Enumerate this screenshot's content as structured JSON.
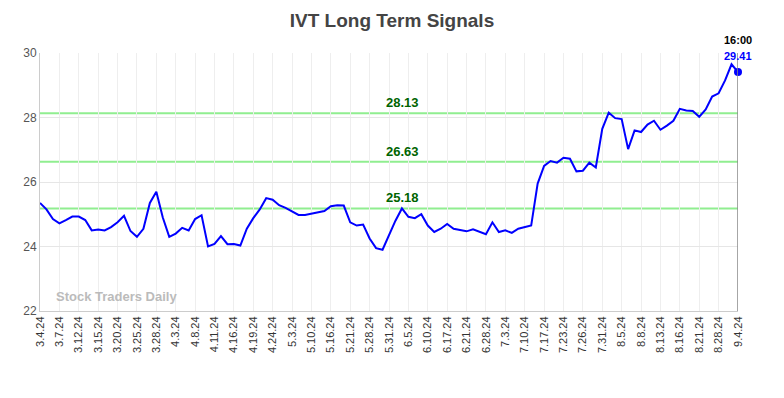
{
  "chart_data": {
    "type": "line",
    "title": "IVT Long Term Signals",
    "categories": [
      "3.4.24",
      null,
      null,
      "3.7.24",
      null,
      null,
      "3.12.24",
      null,
      null,
      "3.15.24",
      null,
      null,
      "3.20.24",
      null,
      null,
      "3.25.24",
      null,
      null,
      "3.28.24",
      null,
      null,
      "4.3.24",
      null,
      null,
      "4.8.24",
      null,
      null,
      "4.11.24",
      null,
      null,
      "4.16.24",
      null,
      null,
      "4.19.24",
      null,
      null,
      "4.24.24",
      null,
      null,
      "5.3.24",
      null,
      null,
      "5.10.24",
      null,
      null,
      "5.16.24",
      null,
      null,
      "5.21.24",
      null,
      null,
      "5.28.24",
      null,
      null,
      "5.31.24",
      null,
      null,
      "6.5.24",
      null,
      null,
      "6.10.24",
      null,
      null,
      "6.17.24",
      null,
      null,
      "6.21.24",
      null,
      null,
      "6.28.24",
      null,
      null,
      "7.3.24",
      null,
      null,
      "7.10.24",
      null,
      null,
      "7.17.24",
      null,
      null,
      "7.23.24",
      null,
      null,
      "7.26.24",
      null,
      null,
      "7.31.24",
      null,
      null,
      "8.5.24",
      null,
      null,
      "8.8.24",
      null,
      null,
      "8.13.24",
      null,
      null,
      "8.16.24",
      null,
      null,
      "8.21.24",
      null,
      null,
      "8.28.24",
      null,
      null,
      "9.4.24"
    ],
    "values": [
      25.35,
      25.15,
      24.85,
      24.72,
      24.82,
      24.93,
      24.93,
      24.82,
      24.5,
      24.53,
      24.5,
      24.6,
      24.75,
      24.95,
      24.48,
      24.3,
      24.55,
      25.35,
      25.7,
      24.9,
      24.3,
      24.4,
      24.58,
      24.5,
      24.85,
      24.97,
      24.0,
      24.08,
      24.32,
      24.07,
      24.08,
      24.03,
      24.55,
      24.88,
      25.15,
      25.5,
      25.45,
      25.28,
      25.2,
      25.1,
      24.98,
      24.98,
      25.02,
      25.05,
      25.1,
      25.25,
      25.28,
      25.27,
      24.75,
      24.65,
      24.68,
      24.25,
      23.95,
      23.9,
      24.35,
      24.8,
      25.18,
      24.92,
      24.88,
      25.0,
      24.65,
      24.45,
      24.55,
      24.7,
      24.55,
      24.5,
      24.47,
      24.53,
      24.45,
      24.38,
      24.75,
      24.45,
      24.5,
      24.42,
      24.55,
      24.6,
      24.65,
      25.95,
      26.5,
      26.65,
      26.6,
      26.75,
      26.72,
      26.33,
      26.35,
      26.6,
      26.45,
      27.65,
      28.15,
      27.98,
      27.95,
      27.02,
      27.6,
      27.55,
      27.78,
      27.9,
      27.62,
      27.75,
      27.9,
      28.27,
      28.22,
      28.2,
      28.02,
      28.25,
      28.65,
      28.75,
      29.15,
      29.65,
      29.41
    ],
    "color": "#0000ff",
    "ylim": [
      22,
      30
    ],
    "yticks": [
      22,
      24,
      26,
      28,
      30
    ],
    "grid": true,
    "levels": [
      28.13,
      26.63,
      25.18
    ],
    "level_color": "#90ee90",
    "last_label": {
      "time": "16:00",
      "value": 29.41
    },
    "watermark": "Stock Traders Daily"
  }
}
